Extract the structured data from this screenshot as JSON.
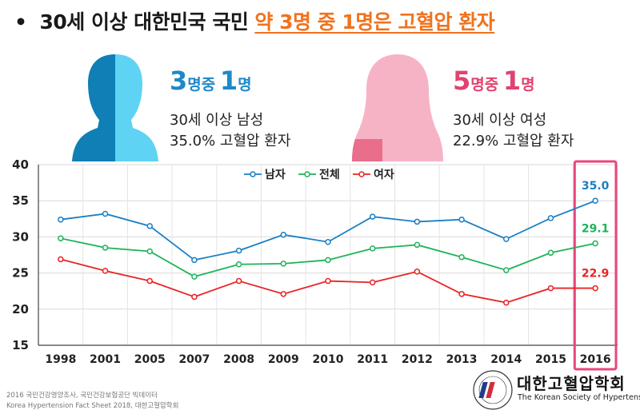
{
  "headline": {
    "bullet": "•",
    "prefix": "30세 이상 대한민국 국민",
    "highlight": "약 3명 중 1명은 고혈압 환자"
  },
  "male": {
    "big_num1": "3",
    "big_unit1": "명중",
    "big_num2": "1",
    "big_unit2": "명",
    "line1": "30세 이상 남성",
    "line2": "35.0% 고혈압 환자",
    "color_dark": "#0f7fb6",
    "color_light": "#5fd3f3",
    "text_color": "#1f88c8"
  },
  "female": {
    "big_num1": "5",
    "big_unit1": "명중",
    "big_num2": "1",
    "big_unit2": "명",
    "line1": "30세 이상 여성",
    "line2": "22.9% 고혈압 환자",
    "color_dark": "#e86e8b",
    "color_light": "#f7b3c6",
    "text_color": "#e2426f"
  },
  "chart_data": {
    "type": "line",
    "categories": [
      "1998",
      "2001",
      "2005",
      "2007",
      "2008",
      "2009",
      "2010",
      "2011",
      "2012",
      "2013",
      "2014",
      "2015",
      "2016"
    ],
    "series": [
      {
        "name": "남자",
        "color": "#1a7fc4",
        "values": [
          32.4,
          33.2,
          31.5,
          26.8,
          28.1,
          30.3,
          29.3,
          32.8,
          32.1,
          32.4,
          29.7,
          32.6,
          35.0
        ]
      },
      {
        "name": "전체",
        "color": "#1db35a",
        "values": [
          29.8,
          28.5,
          28.0,
          24.5,
          26.2,
          26.3,
          26.8,
          28.4,
          28.9,
          27.2,
          25.4,
          27.8,
          29.1
        ]
      },
      {
        "name": "여자",
        "color": "#ea2323",
        "values": [
          26.9,
          25.3,
          23.9,
          21.7,
          23.9,
          22.1,
          23.9,
          23.7,
          25.2,
          22.1,
          20.9,
          22.9,
          22.9
        ]
      }
    ],
    "ylim": [
      15,
      40
    ],
    "yticks": [
      15,
      20,
      25,
      30,
      35,
      40
    ],
    "grid": true,
    "legend_position": "top-center",
    "highlight_category": "2016",
    "highlight_color": "#e8467c",
    "annotations": [
      {
        "series": 0,
        "category": "2016",
        "text": "35.0"
      },
      {
        "series": 1,
        "category": "2016",
        "text": "29.1"
      },
      {
        "series": 2,
        "category": "2016",
        "text": "22.9"
      }
    ]
  },
  "footnotes": {
    "line1": "2016 국민건강영양조사, 국민건강보험공단 빅데이터",
    "line2": "Korea Hypertension Fact Sheet 2018, 대한고혈압학회"
  },
  "logo": {
    "name_ko": "대한고혈압학회",
    "name_en": "The Korean Society of Hypertension",
    "seal_text": "대한고혈압학회",
    "mark_color_blue": "#1f3d8c",
    "mark_color_red": "#d22e3a"
  }
}
